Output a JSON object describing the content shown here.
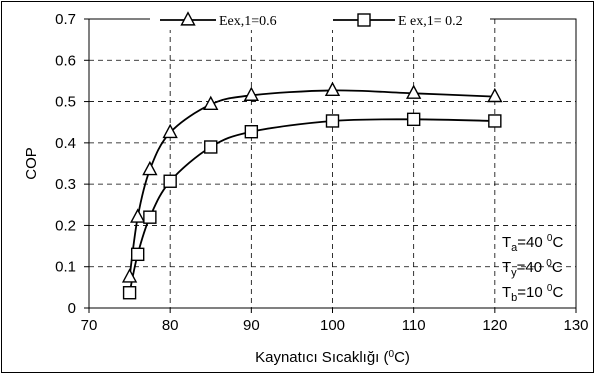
{
  "chart_data": {
    "type": "line",
    "title": "",
    "xlabel": "Kaynatıcı Sıcaklığı (0C)",
    "xlabel_parts": {
      "pre": "Kaynatıcı Sıcaklığı (",
      "sup": "0",
      "post": "C)"
    },
    "ylabel": "COP",
    "xlim": [
      70,
      130
    ],
    "ylim": [
      0,
      0.7
    ],
    "x_ticks": [
      70,
      80,
      90,
      100,
      110,
      120,
      130
    ],
    "x_tick_labels": [
      "70",
      "80",
      "90",
      "100",
      "110",
      "120",
      "130"
    ],
    "y_ticks": [
      0,
      0.1,
      0.2,
      0.3,
      0.4,
      0.5,
      0.6,
      0.7
    ],
    "y_tick_labels": [
      "0",
      "0.1",
      "0.2",
      "0.3",
      "0.4",
      "0.5",
      "0.6",
      "0.7"
    ],
    "grid": "dashed",
    "legend_position": "top",
    "series": [
      {
        "name": "Eex,1=0.6",
        "marker": "triangle",
        "x": [
          75,
          76,
          77.5,
          80,
          85,
          90,
          100,
          110,
          120
        ],
        "y": [
          0.075,
          0.22,
          0.335,
          0.425,
          0.493,
          0.515,
          0.527,
          0.52,
          0.512
        ]
      },
      {
        "name": "E ex,1= 0.2",
        "marker": "square",
        "x": [
          75,
          76,
          77.5,
          80,
          85,
          90,
          100,
          110,
          120
        ],
        "y": [
          0.037,
          0.13,
          0.22,
          0.307,
          0.39,
          0.427,
          0.453,
          0.457,
          0.453
        ]
      }
    ],
    "annotations": [
      {
        "base": "T",
        "sub": "a",
        "value": "=40 ",
        "sup": "0",
        "unit": "C"
      },
      {
        "base": "T",
        "sub": "y",
        "value": "=40 ",
        "sup": "0",
        "unit": "C"
      },
      {
        "base": "T",
        "sub": "b",
        "value": "=10 ",
        "sup": "0",
        "unit": "C"
      }
    ]
  }
}
